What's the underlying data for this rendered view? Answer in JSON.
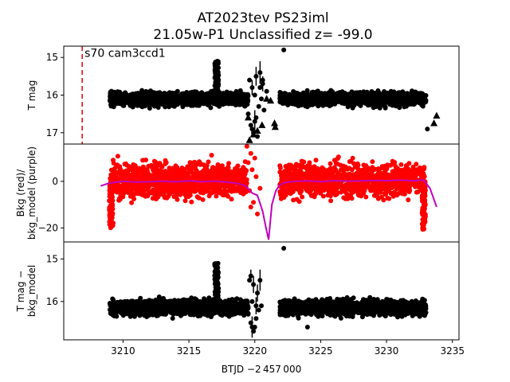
{
  "chart_data": {
    "type": "scatter",
    "title": [
      "AT2023tev  PS23iml",
      "21.05w-P1 Unclassified z= -99.0"
    ],
    "xlabel": "BTJD −2 457 000",
    "xlim": [
      3205.5,
      3235.5
    ],
    "xticks": [
      3210,
      3215,
      3220,
      3225,
      3230,
      3235
    ],
    "colors": {
      "points": "#000000",
      "bkg": "#ff0000",
      "model": "#c000c0",
      "marker_line": "#e00000"
    },
    "panels": [
      {
        "id": "tmag",
        "ylabel": [
          "T mag"
        ],
        "ylim": [
          14.7,
          17.3
        ],
        "inverted": true,
        "yticks": [
          15,
          16,
          17
        ],
        "annotation": {
          "text": "s70 cam3ccd1",
          "x": 3206.9,
          "y": 14.8
        },
        "vline": {
          "x": 3206.9,
          "style": "dashed"
        },
        "segments": [
          {
            "x0": 3209.0,
            "x1": 3219.5,
            "center": 16.1,
            "spread": 0.17
          },
          {
            "x0": 3221.9,
            "x1": 3233.0,
            "center": 16.1,
            "spread": 0.17
          }
        ],
        "flare": {
          "x0": 3216.95,
          "x1": 3217.25,
          "peak": 15.1,
          "base": 16.0
        },
        "gap_points": [
          [
            3219.3,
            16.2
          ],
          [
            3219.5,
            16.5
          ],
          [
            3219.7,
            16.8
          ],
          [
            3219.9,
            17.0
          ],
          [
            3220.1,
            16.6
          ],
          [
            3220.3,
            16.3
          ],
          [
            3220.5,
            16.1
          ],
          [
            3220.7,
            16.4
          ],
          [
            3220.0,
            16.0
          ],
          [
            3220.4,
            15.8
          ],
          [
            3220.6,
            15.6
          ],
          [
            3220.2,
            17.1
          ],
          [
            3219.8,
            16.9
          ]
        ],
        "errorbars": [
          [
            3219.8,
            15.8,
            0.2
          ],
          [
            3220.1,
            15.5,
            0.25
          ],
          [
            3220.4,
            15.4,
            0.3
          ],
          [
            3220.6,
            15.7,
            0.2
          ],
          [
            3220.0,
            16.7,
            0.3
          ]
        ],
        "outliers": [
          [
            3222.2,
            14.8
          ],
          [
            3233.1,
            16.9
          ],
          [
            3219.6,
            15.6
          ],
          [
            3220.9,
            15.9
          ]
        ],
        "triangles": [
          [
            3219.6,
            17.2
          ],
          [
            3219.9,
            17.05
          ],
          [
            3220.2,
            16.95
          ],
          [
            3220.55,
            16.8
          ],
          [
            3220.9,
            16.1
          ],
          [
            3221.2,
            16.15
          ],
          [
            3221.5,
            16.75
          ],
          [
            3221.55,
            16.85
          ],
          [
            3233.8,
            16.55
          ],
          [
            3233.6,
            16.75
          ],
          [
            3219.5,
            16.6
          ]
        ]
      },
      {
        "id": "bkg",
        "ylabel": [
          "Bkg (red)/",
          "bkg_model (purple)"
        ],
        "ylim": [
          -26,
          16
        ],
        "inverted": false,
        "yticks": [
          0,
          -20
        ],
        "segments": [
          {
            "x0": 3209.0,
            "x1": 3219.4,
            "center": 0.5,
            "spread": 7
          },
          {
            "x0": 3221.9,
            "x1": 3232.9,
            "center": 0.5,
            "spread": 7
          }
        ],
        "model": {
          "x": [
            3208.3,
            3208.8,
            3209.3,
            3210,
            3211,
            3212,
            3213,
            3214,
            3215,
            3216,
            3217,
            3218,
            3218.8,
            3219.3,
            3219.8,
            3220.2,
            3220.6,
            3220.85,
            3221.05,
            3221.3,
            3221.6,
            3221.9,
            3222.3,
            3223,
            3224,
            3225,
            3226,
            3227,
            3228,
            3229,
            3230,
            3231,
            3232,
            3232.8,
            3233.3,
            3233.8
          ],
          "y": [
            -2,
            -1,
            -0.5,
            0,
            -0.3,
            -0.2,
            0.1,
            -0.2,
            0.2,
            -0.1,
            0.1,
            -0.4,
            -1,
            -2,
            -5,
            -6,
            -13,
            -20,
            -25,
            -10,
            -4,
            -1.5,
            -0.5,
            0,
            0.2,
            -0.1,
            0.3,
            0.1,
            0.2,
            0.4,
            0.3,
            0.5,
            0.2,
            0.6,
            -3,
            -11
          ]
        },
        "drop_left": {
          "x0": 3208.95,
          "x1": 3209.25,
          "low": -20
        },
        "drop_right": {
          "x0": 3232.7,
          "x1": 3232.95,
          "low": -21
        },
        "gap_points": [
          [
            3219.4,
            15
          ],
          [
            3219.7,
            12
          ],
          [
            3220.0,
            10
          ],
          [
            3219.5,
            8
          ],
          [
            3219.8,
            5
          ],
          [
            3220.1,
            2
          ],
          [
            3219.6,
            -4
          ],
          [
            3219.9,
            -9
          ],
          [
            3220.2,
            -14
          ],
          [
            3220.4,
            -3
          ],
          [
            3219.7,
            -11
          ]
        ]
      },
      {
        "id": "diff",
        "ylabel": [
          "T mag −",
          "bkg_model"
        ],
        "ylim": [
          14.6,
          16.9
        ],
        "inverted": true,
        "yticks": [
          15,
          16
        ],
        "segments": [
          {
            "x0": 3209.0,
            "x1": 3219.5,
            "center": 16.15,
            "spread": 0.18
          },
          {
            "x0": 3221.9,
            "x1": 3233.0,
            "center": 16.15,
            "spread": 0.18
          }
        ],
        "flare": {
          "x0": 3216.95,
          "x1": 3217.25,
          "peak": 15.1,
          "base": 16.0
        },
        "gap_points": [
          [
            3219.5,
            16.3
          ],
          [
            3219.7,
            16.5
          ],
          [
            3219.9,
            16.7
          ],
          [
            3220.1,
            16.4
          ],
          [
            3220.3,
            16.2
          ],
          [
            3220.5,
            16.1
          ],
          [
            3219.8,
            16.0
          ],
          [
            3220.0,
            16.6
          ]
        ],
        "errorbars": [
          [
            3219.7,
            15.4,
            0.15
          ],
          [
            3219.9,
            15.6,
            0.2
          ],
          [
            3220.2,
            15.8,
            0.2
          ],
          [
            3220.4,
            15.5,
            0.25
          ],
          [
            3219.8,
            16.6,
            0.25
          ],
          [
            3220.1,
            16.1,
            0.2
          ]
        ],
        "outliers": [
          [
            3222.2,
            14.75
          ],
          [
            3219.6,
            15.5
          ],
          [
            3224.0,
            16.6
          ]
        ]
      }
    ]
  }
}
